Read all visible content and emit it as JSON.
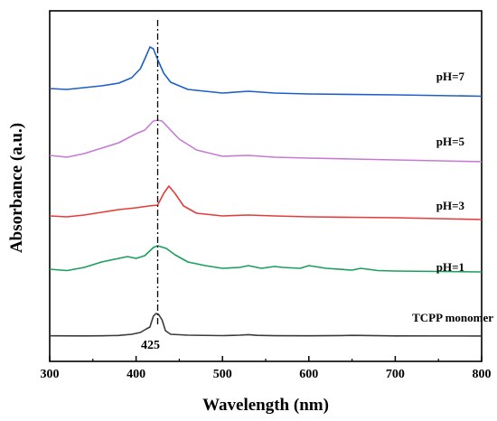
{
  "chart_data": {
    "type": "line",
    "title": "",
    "xlabel": "Wavelength (nm)",
    "ylabel": "Absorbance (a.u.)",
    "xlim": [
      300,
      800
    ],
    "xticks": [
      "300",
      "400",
      "500",
      "600",
      "700",
      "800"
    ],
    "yticks": "none",
    "grid": false,
    "legend": "none",
    "annotations": [
      {
        "text": "425",
        "x": 425,
        "style": "dash-dot vertical line"
      }
    ],
    "series": [
      {
        "name": "TCPP monomer",
        "color": "#3a3a3a",
        "offset": 0,
        "points": [
          [
            300,
            0.3
          ],
          [
            340,
            0.2
          ],
          [
            360,
            0.3
          ],
          [
            380,
            0.7
          ],
          [
            395,
            2
          ],
          [
            405,
            4
          ],
          [
            412,
            8
          ],
          [
            416,
            10
          ],
          [
            420,
            22
          ],
          [
            423,
            25
          ],
          [
            426,
            24
          ],
          [
            430,
            18
          ],
          [
            434,
            6
          ],
          [
            440,
            2
          ],
          [
            460,
            1
          ],
          [
            500,
            0.5
          ],
          [
            520,
            1
          ],
          [
            530,
            1.6
          ],
          [
            540,
            0.8
          ],
          [
            560,
            0.4
          ],
          [
            600,
            0.3
          ],
          [
            640,
            0.6
          ],
          [
            650,
            0.8
          ],
          [
            700,
            0.2
          ],
          [
            800,
            0.1
          ]
        ]
      },
      {
        "name": "pH=1",
        "color": "#1a9e5c",
        "offset": 72,
        "points": [
          [
            300,
            2
          ],
          [
            320,
            0.5
          ],
          [
            340,
            4
          ],
          [
            360,
            10
          ],
          [
            380,
            14
          ],
          [
            390,
            16
          ],
          [
            400,
            14
          ],
          [
            410,
            17
          ],
          [
            420,
            26
          ],
          [
            425,
            28
          ],
          [
            435,
            25
          ],
          [
            445,
            18
          ],
          [
            460,
            10
          ],
          [
            480,
            6
          ],
          [
            500,
            3
          ],
          [
            520,
            4
          ],
          [
            530,
            6
          ],
          [
            545,
            3
          ],
          [
            560,
            5
          ],
          [
            570,
            4
          ],
          [
            590,
            3
          ],
          [
            600,
            6
          ],
          [
            620,
            3
          ],
          [
            650,
            1
          ],
          [
            660,
            3
          ],
          [
            680,
            0.5
          ],
          [
            700,
            0
          ],
          [
            750,
            -0.5
          ],
          [
            800,
            -1
          ]
        ]
      },
      {
        "name": "pH=3",
        "color": "#e63b3b",
        "offset": 130,
        "points": [
          [
            300,
            3
          ],
          [
            320,
            2
          ],
          [
            340,
            4
          ],
          [
            360,
            7
          ],
          [
            380,
            10
          ],
          [
            400,
            12
          ],
          [
            415,
            14
          ],
          [
            425,
            15
          ],
          [
            432,
            28
          ],
          [
            438,
            36
          ],
          [
            445,
            28
          ],
          [
            455,
            14
          ],
          [
            470,
            6
          ],
          [
            500,
            3
          ],
          [
            530,
            4
          ],
          [
            560,
            3
          ],
          [
            600,
            2
          ],
          [
            650,
            1.5
          ],
          [
            700,
            1
          ],
          [
            750,
            0
          ],
          [
            800,
            -1
          ]
        ]
      },
      {
        "name": "pH=5",
        "color": "#c67ad4",
        "offset": 194,
        "points": [
          [
            300,
            6
          ],
          [
            320,
            4
          ],
          [
            340,
            8
          ],
          [
            360,
            14
          ],
          [
            380,
            20
          ],
          [
            400,
            30
          ],
          [
            410,
            34
          ],
          [
            420,
            44
          ],
          [
            425,
            45
          ],
          [
            430,
            44
          ],
          [
            440,
            34
          ],
          [
            450,
            24
          ],
          [
            470,
            12
          ],
          [
            500,
            5
          ],
          [
            530,
            6
          ],
          [
            560,
            4
          ],
          [
            600,
            3
          ],
          [
            650,
            2
          ],
          [
            700,
            1
          ],
          [
            750,
            0
          ],
          [
            800,
            -1
          ]
        ]
      },
      {
        "name": "pH=7",
        "color": "#1d5ec7",
        "offset": 266,
        "points": [
          [
            300,
            8
          ],
          [
            320,
            7
          ],
          [
            340,
            9
          ],
          [
            360,
            11
          ],
          [
            380,
            14
          ],
          [
            395,
            20
          ],
          [
            405,
            30
          ],
          [
            412,
            45
          ],
          [
            416,
            54
          ],
          [
            420,
            52
          ],
          [
            425,
            40
          ],
          [
            432,
            25
          ],
          [
            440,
            15
          ],
          [
            460,
            7
          ],
          [
            500,
            3
          ],
          [
            530,
            5
          ],
          [
            560,
            3
          ],
          [
            600,
            2
          ],
          [
            700,
            1
          ],
          [
            800,
            -0.5
          ]
        ]
      }
    ]
  }
}
